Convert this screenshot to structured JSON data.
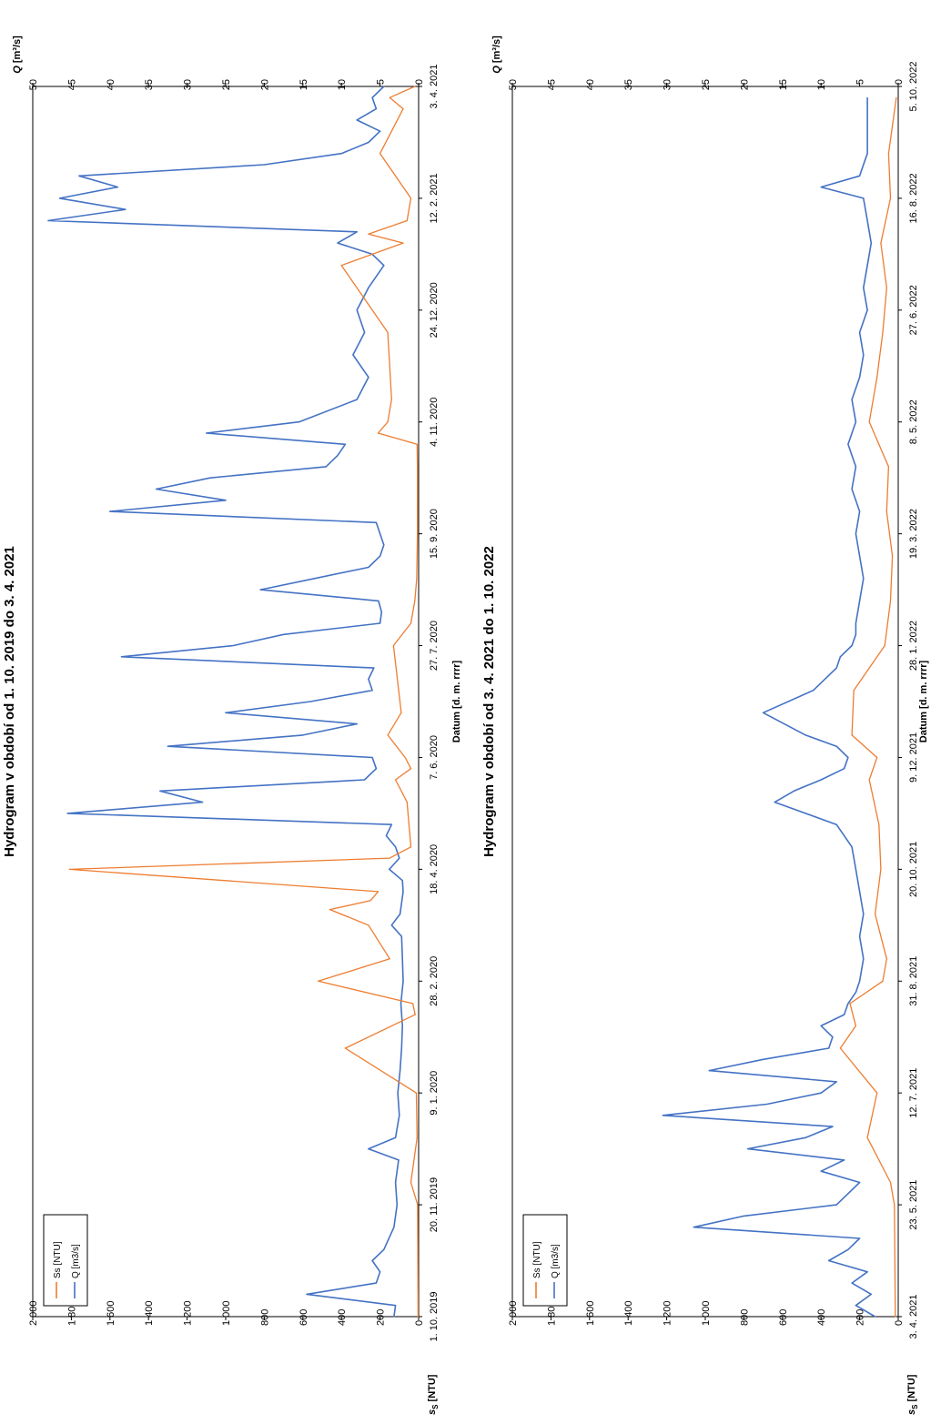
{
  "colors": {
    "q": "#4472C4",
    "ss": "#ED7D31",
    "frame": "#000000",
    "background": "#ffffff"
  },
  "chart_data": [
    {
      "type": "line",
      "title": "Hydrogram v období od 1. 10. 2019 do 3. 4. 2021",
      "xlabel": "Datum [d. m. rrrr]",
      "ylabel_left": "s",
      "ylabel_left_sub": "S",
      "ylabel_left_unit": " [NTU]",
      "ylabel_right": "Q",
      "ylabel_right_unit": " [m³/s]",
      "x_ticks": [
        "1. 10. 2019",
        "20. 11. 2019",
        "9. 1. 2020",
        "28. 2. 2020",
        "18. 4. 2020",
        "7. 6. 2020",
        "27. 7. 2020",
        "15. 9. 2020",
        "4. 11. 2020",
        "24. 12. 2020",
        "12. 2. 2021",
        "3. 4. 2021"
      ],
      "x_range_days": [
        0,
        550
      ],
      "y_left_ticks": [
        "0",
        "200",
        "400",
        "600",
        "800",
        "1 000",
        "1 200",
        "1 400",
        "1 600",
        "1 800",
        "2 000"
      ],
      "y_left_range": [
        0,
        2000
      ],
      "y_right_ticks": [
        "0",
        "5",
        "10",
        "15",
        "20",
        "25",
        "30",
        "35",
        "40",
        "45",
        "50"
      ],
      "y_right_range": [
        0,
        50
      ],
      "legend": [
        "Ss [NTU]",
        "Q [m3/s]"
      ],
      "legend_position": "top-left",
      "grid": false,
      "series": [
        {
          "name": "Q [m3/s]",
          "axis": "right",
          "x": [
            0,
            5,
            10,
            15,
            20,
            25,
            30,
            40,
            50,
            60,
            70,
            75,
            80,
            90,
            100,
            110,
            120,
            130,
            140,
            150,
            160,
            170,
            175,
            180,
            185,
            190,
            195,
            200,
            205,
            210,
            215,
            220,
            225,
            230,
            235,
            240,
            245,
            250,
            255,
            260,
            265,
            270,
            275,
            280,
            285,
            290,
            295,
            300,
            305,
            310,
            315,
            320,
            325,
            330,
            335,
            340,
            345,
            350,
            355,
            360,
            365,
            370,
            375,
            380,
            385,
            390,
            395,
            400,
            410,
            420,
            430,
            440,
            450,
            460,
            470,
            475,
            480,
            485,
            490,
            495,
            500,
            505,
            510,
            515,
            520,
            525,
            530,
            535,
            540,
            545,
            550
          ],
          "y": [
            3.2,
            3.0,
            14.5,
            5.5,
            5.0,
            6.0,
            4.5,
            3.2,
            2.8,
            3.0,
            2.6,
            6.5,
            3.0,
            2.5,
            2.7,
            2.4,
            2.2,
            2.1,
            2.3,
            2.0,
            2.1,
            2.2,
            3.5,
            2.4,
            2.2,
            2.0,
            2.1,
            3.8,
            2.5,
            3.0,
            4.2,
            3.5,
            45.5,
            28.0,
            33.5,
            7.0,
            5.5,
            6.0,
            32.5,
            15.0,
            8.0,
            25.0,
            14.0,
            6.0,
            6.5,
            5.8,
            38.5,
            24.0,
            17.5,
            5.0,
            4.8,
            5.2,
            20.5,
            13.5,
            6.5,
            5.0,
            4.5,
            5.0,
            5.5,
            40.0,
            25.0,
            34.0,
            27.0,
            12.0,
            10.5,
            9.5,
            27.5,
            15.5,
            8.0,
            6.5,
            8.5,
            7.0,
            8.0,
            6.5,
            4.5,
            6.0,
            10.5,
            8.0,
            48.0,
            38.0,
            46.5,
            39.0,
            44.0,
            20.0,
            10.0,
            6.5,
            5.0,
            8.0,
            5.5,
            6.0,
            4.5
          ]
        },
        {
          "name": "Ss [NTU]",
          "axis": "left",
          "x": [
            0,
            50,
            60,
            80,
            100,
            120,
            135,
            140,
            150,
            160,
            175,
            182,
            186,
            190,
            200,
            205,
            210,
            230,
            240,
            245,
            250,
            260,
            270,
            300,
            310,
            320,
            330,
            350,
            360,
            380,
            390,
            395,
            400,
            410,
            440,
            470,
            480,
            484,
            490,
            500,
            520,
            540,
            545,
            550
          ],
          "y": [
            3,
            5,
            40,
            8,
            12,
            380,
            18,
            30,
            520,
            150,
            260,
            460,
            250,
            210,
            1810,
            150,
            40,
            60,
            120,
            40,
            70,
            160,
            90,
            130,
            40,
            20,
            10,
            6,
            6,
            6,
            8,
            210,
            160,
            140,
            160,
            400,
            80,
            260,
            60,
            40,
            200,
            80,
            150,
            20
          ]
        }
      ]
    },
    {
      "type": "line",
      "title": "Hydrogram v období od 3. 4. 2021 do 1. 10. 2022",
      "xlabel": "Datum [d. m. rrrr]",
      "ylabel_left": "s",
      "ylabel_left_sub": "S",
      "ylabel_left_unit": " [NTU]",
      "ylabel_right": "Q",
      "ylabel_right_unit": " [m³/s]",
      "x_ticks": [
        "3. 4. 2021",
        "23. 5. 2021",
        "12. 7. 2021",
        "31. 8. 2021",
        "20. 10. 2021",
        "9. 12. 2021",
        "28. 1. 2022",
        "19. 3. 2022",
        "8. 5. 2022",
        "27. 6. 2022",
        "16. 8. 2022",
        "5. 10. 2022"
      ],
      "x_range_days": [
        0,
        550
      ],
      "y_left_ticks": [
        "0",
        "200",
        "400",
        "600",
        "800",
        "1 000",
        "1 200",
        "1 400",
        "1 600",
        "1 800",
        "2 000"
      ],
      "y_left_range": [
        0,
        2000
      ],
      "y_right_ticks": [
        "0",
        "5",
        "10",
        "15",
        "20",
        "25",
        "30",
        "35",
        "40",
        "45",
        "50"
      ],
      "y_right_range": [
        0,
        50
      ],
      "legend": [
        "Ss [NTU]",
        "Q [m3/s]"
      ],
      "legend_position": "top-left",
      "grid": false,
      "series": [
        {
          "name": "Q [m3/s]",
          "axis": "right",
          "x": [
            0,
            5,
            10,
            15,
            20,
            25,
            30,
            35,
            40,
            45,
            50,
            55,
            60,
            65,
            70,
            75,
            80,
            85,
            90,
            95,
            100,
            105,
            110,
            115,
            120,
            125,
            130,
            135,
            140,
            145,
            150,
            160,
            170,
            180,
            190,
            200,
            210,
            220,
            230,
            235,
            240,
            245,
            250,
            255,
            260,
            270,
            280,
            290,
            295,
            300,
            305,
            310,
            320,
            330,
            340,
            350,
            360,
            370,
            380,
            390,
            400,
            410,
            420,
            430,
            440,
            450,
            460,
            470,
            480,
            490,
            500,
            505,
            510,
            515,
            520,
            530,
            540,
            545
          ],
          "y": [
            3.0,
            5.5,
            3.5,
            6.0,
            4.0,
            9.0,
            6.5,
            5.0,
            26.5,
            20.0,
            8.0,
            6.5,
            5.0,
            10.0,
            7.0,
            19.5,
            12.0,
            8.5,
            30.5,
            17.0,
            10.0,
            8.0,
            24.5,
            17.5,
            9.0,
            8.5,
            10.0,
            7.0,
            6.5,
            5.5,
            5.0,
            4.5,
            5.0,
            4.5,
            5.0,
            5.5,
            6.0,
            8.0,
            16.0,
            13.5,
            10.0,
            7.0,
            6.5,
            8.0,
            12.0,
            17.5,
            11.0,
            8.0,
            7.5,
            6.0,
            5.5,
            5.5,
            5.0,
            4.5,
            5.0,
            5.5,
            5.0,
            6.0,
            5.5,
            6.5,
            5.5,
            6.0,
            5.0,
            4.5,
            5.0,
            4.0,
            4.5,
            4.0,
            3.5,
            4.0,
            4.5,
            10.0,
            5.0,
            4.5,
            4.0,
            4.0,
            4.0,
            4.0
          ]
        },
        {
          "name": "Ss [NTU]",
          "axis": "left",
          "x": [
            0,
            50,
            60,
            80,
            100,
            120,
            130,
            140,
            150,
            160,
            180,
            200,
            220,
            240,
            250,
            260,
            280,
            300,
            320,
            340,
            360,
            380,
            400,
            420,
            440,
            460,
            480,
            500,
            520,
            545
          ],
          "y": [
            15,
            20,
            40,
            160,
            110,
            300,
            220,
            250,
            80,
            60,
            120,
            90,
            100,
            150,
            110,
            240,
            230,
            70,
            40,
            30,
            60,
            50,
            150,
            110,
            80,
            60,
            90,
            40,
            50,
            10
          ]
        }
      ]
    }
  ]
}
